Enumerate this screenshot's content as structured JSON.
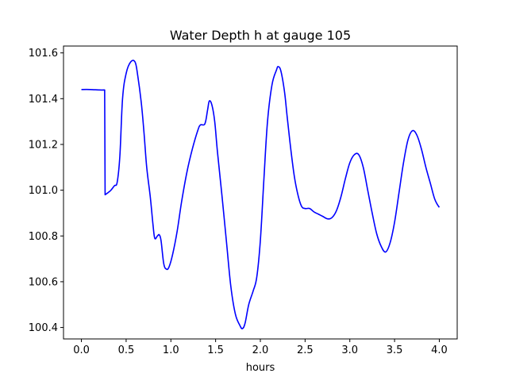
{
  "chart_data": {
    "type": "line",
    "title": "Water Depth h at gauge 105",
    "xlabel": "hours",
    "ylabel": "",
    "xlim": [
      -0.2,
      4.2
    ],
    "ylim": [
      100.35,
      101.63
    ],
    "grid": false,
    "x_ticks": [
      0.0,
      0.5,
      1.0,
      1.5,
      2.0,
      2.5,
      3.0,
      3.5,
      4.0
    ],
    "x_tick_labels": [
      "0.0",
      "0.5",
      "1.0",
      "1.5",
      "2.0",
      "2.5",
      "3.0",
      "3.5",
      "4.0"
    ],
    "y_ticks": [
      100.4,
      100.6,
      100.8,
      101.0,
      101.2,
      101.4,
      101.6
    ],
    "y_tick_labels": [
      "100.4",
      "100.6",
      "100.8",
      "101.0",
      "101.2",
      "101.4",
      "101.6"
    ],
    "series": [
      {
        "color": "#0000ff",
        "points": [
          [
            0.0,
            101.44
          ],
          [
            0.1,
            101.44
          ],
          [
            0.2,
            101.438
          ],
          [
            0.26,
            101.438
          ],
          [
            0.265,
            100.98
          ],
          [
            0.3,
            100.99
          ],
          [
            0.33,
            101.0
          ],
          [
            0.37,
            101.02
          ],
          [
            0.4,
            101.035
          ],
          [
            0.43,
            101.15
          ],
          [
            0.46,
            101.4
          ],
          [
            0.5,
            101.51
          ],
          [
            0.55,
            101.56
          ],
          [
            0.6,
            101.56
          ],
          [
            0.63,
            101.5
          ],
          [
            0.67,
            101.38
          ],
          [
            0.7,
            101.25
          ],
          [
            0.73,
            101.1
          ],
          [
            0.77,
            100.97
          ],
          [
            0.8,
            100.85
          ],
          [
            0.82,
            100.79
          ],
          [
            0.85,
            100.8
          ],
          [
            0.87,
            100.805
          ],
          [
            0.89,
            100.78
          ],
          [
            0.92,
            100.68
          ],
          [
            0.95,
            100.655
          ],
          [
            0.98,
            100.665
          ],
          [
            1.02,
            100.72
          ],
          [
            1.07,
            100.82
          ],
          [
            1.12,
            100.95
          ],
          [
            1.18,
            101.08
          ],
          [
            1.24,
            101.18
          ],
          [
            1.3,
            101.26
          ],
          [
            1.33,
            101.285
          ],
          [
            1.38,
            101.29
          ],
          [
            1.41,
            101.35
          ],
          [
            1.43,
            101.39
          ],
          [
            1.46,
            101.37
          ],
          [
            1.49,
            101.3
          ],
          [
            1.52,
            101.17
          ],
          [
            1.57,
            100.98
          ],
          [
            1.62,
            100.78
          ],
          [
            1.67,
            100.58
          ],
          [
            1.72,
            100.46
          ],
          [
            1.77,
            100.41
          ],
          [
            1.8,
            100.395
          ],
          [
            1.83,
            100.42
          ],
          [
            1.87,
            100.5
          ],
          [
            1.92,
            100.56
          ],
          [
            1.96,
            100.62
          ],
          [
            2.0,
            100.78
          ],
          [
            2.04,
            101.05
          ],
          [
            2.08,
            101.3
          ],
          [
            2.13,
            101.46
          ],
          [
            2.18,
            101.525
          ],
          [
            2.2,
            101.54
          ],
          [
            2.23,
            101.52
          ],
          [
            2.27,
            101.43
          ],
          [
            2.3,
            101.32
          ],
          [
            2.34,
            101.18
          ],
          [
            2.38,
            101.06
          ],
          [
            2.42,
            100.98
          ],
          [
            2.46,
            100.93
          ],
          [
            2.5,
            100.92
          ],
          [
            2.55,
            100.92
          ],
          [
            2.6,
            100.905
          ],
          [
            2.65,
            100.895
          ],
          [
            2.7,
            100.885
          ],
          [
            2.75,
            100.875
          ],
          [
            2.8,
            100.88
          ],
          [
            2.85,
            100.91
          ],
          [
            2.9,
            100.97
          ],
          [
            2.95,
            101.05
          ],
          [
            3.0,
            101.12
          ],
          [
            3.05,
            101.155
          ],
          [
            3.1,
            101.155
          ],
          [
            3.15,
            101.1
          ],
          [
            3.2,
            101.0
          ],
          [
            3.25,
            100.9
          ],
          [
            3.3,
            100.81
          ],
          [
            3.35,
            100.755
          ],
          [
            3.4,
            100.73
          ],
          [
            3.45,
            100.77
          ],
          [
            3.5,
            100.86
          ],
          [
            3.55,
            100.99
          ],
          [
            3.6,
            101.12
          ],
          [
            3.65,
            101.22
          ],
          [
            3.7,
            101.26
          ],
          [
            3.75,
            101.24
          ],
          [
            3.8,
            101.18
          ],
          [
            3.85,
            101.1
          ],
          [
            3.9,
            101.03
          ],
          [
            3.95,
            100.96
          ],
          [
            4.0,
            100.925
          ]
        ]
      }
    ]
  }
}
